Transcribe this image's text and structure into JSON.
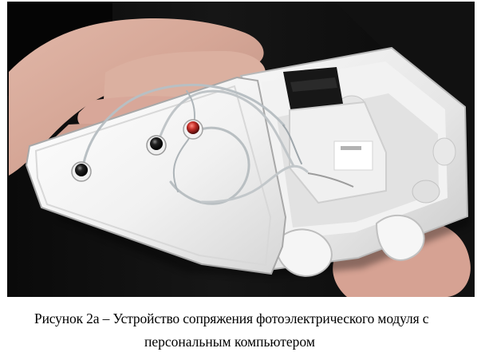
{
  "figure": {
    "caption_line_1": "Рисунок 2а – Устройство сопряжения фотоэлектрического модуля с",
    "caption_line_2": "персональным компьютером"
  },
  "colors": {
    "background": "#0d0d0d",
    "box_white": "#eeeeee",
    "skin": "#d7a89a",
    "jack_red": "#c5352f",
    "jack_black": "#111111"
  }
}
